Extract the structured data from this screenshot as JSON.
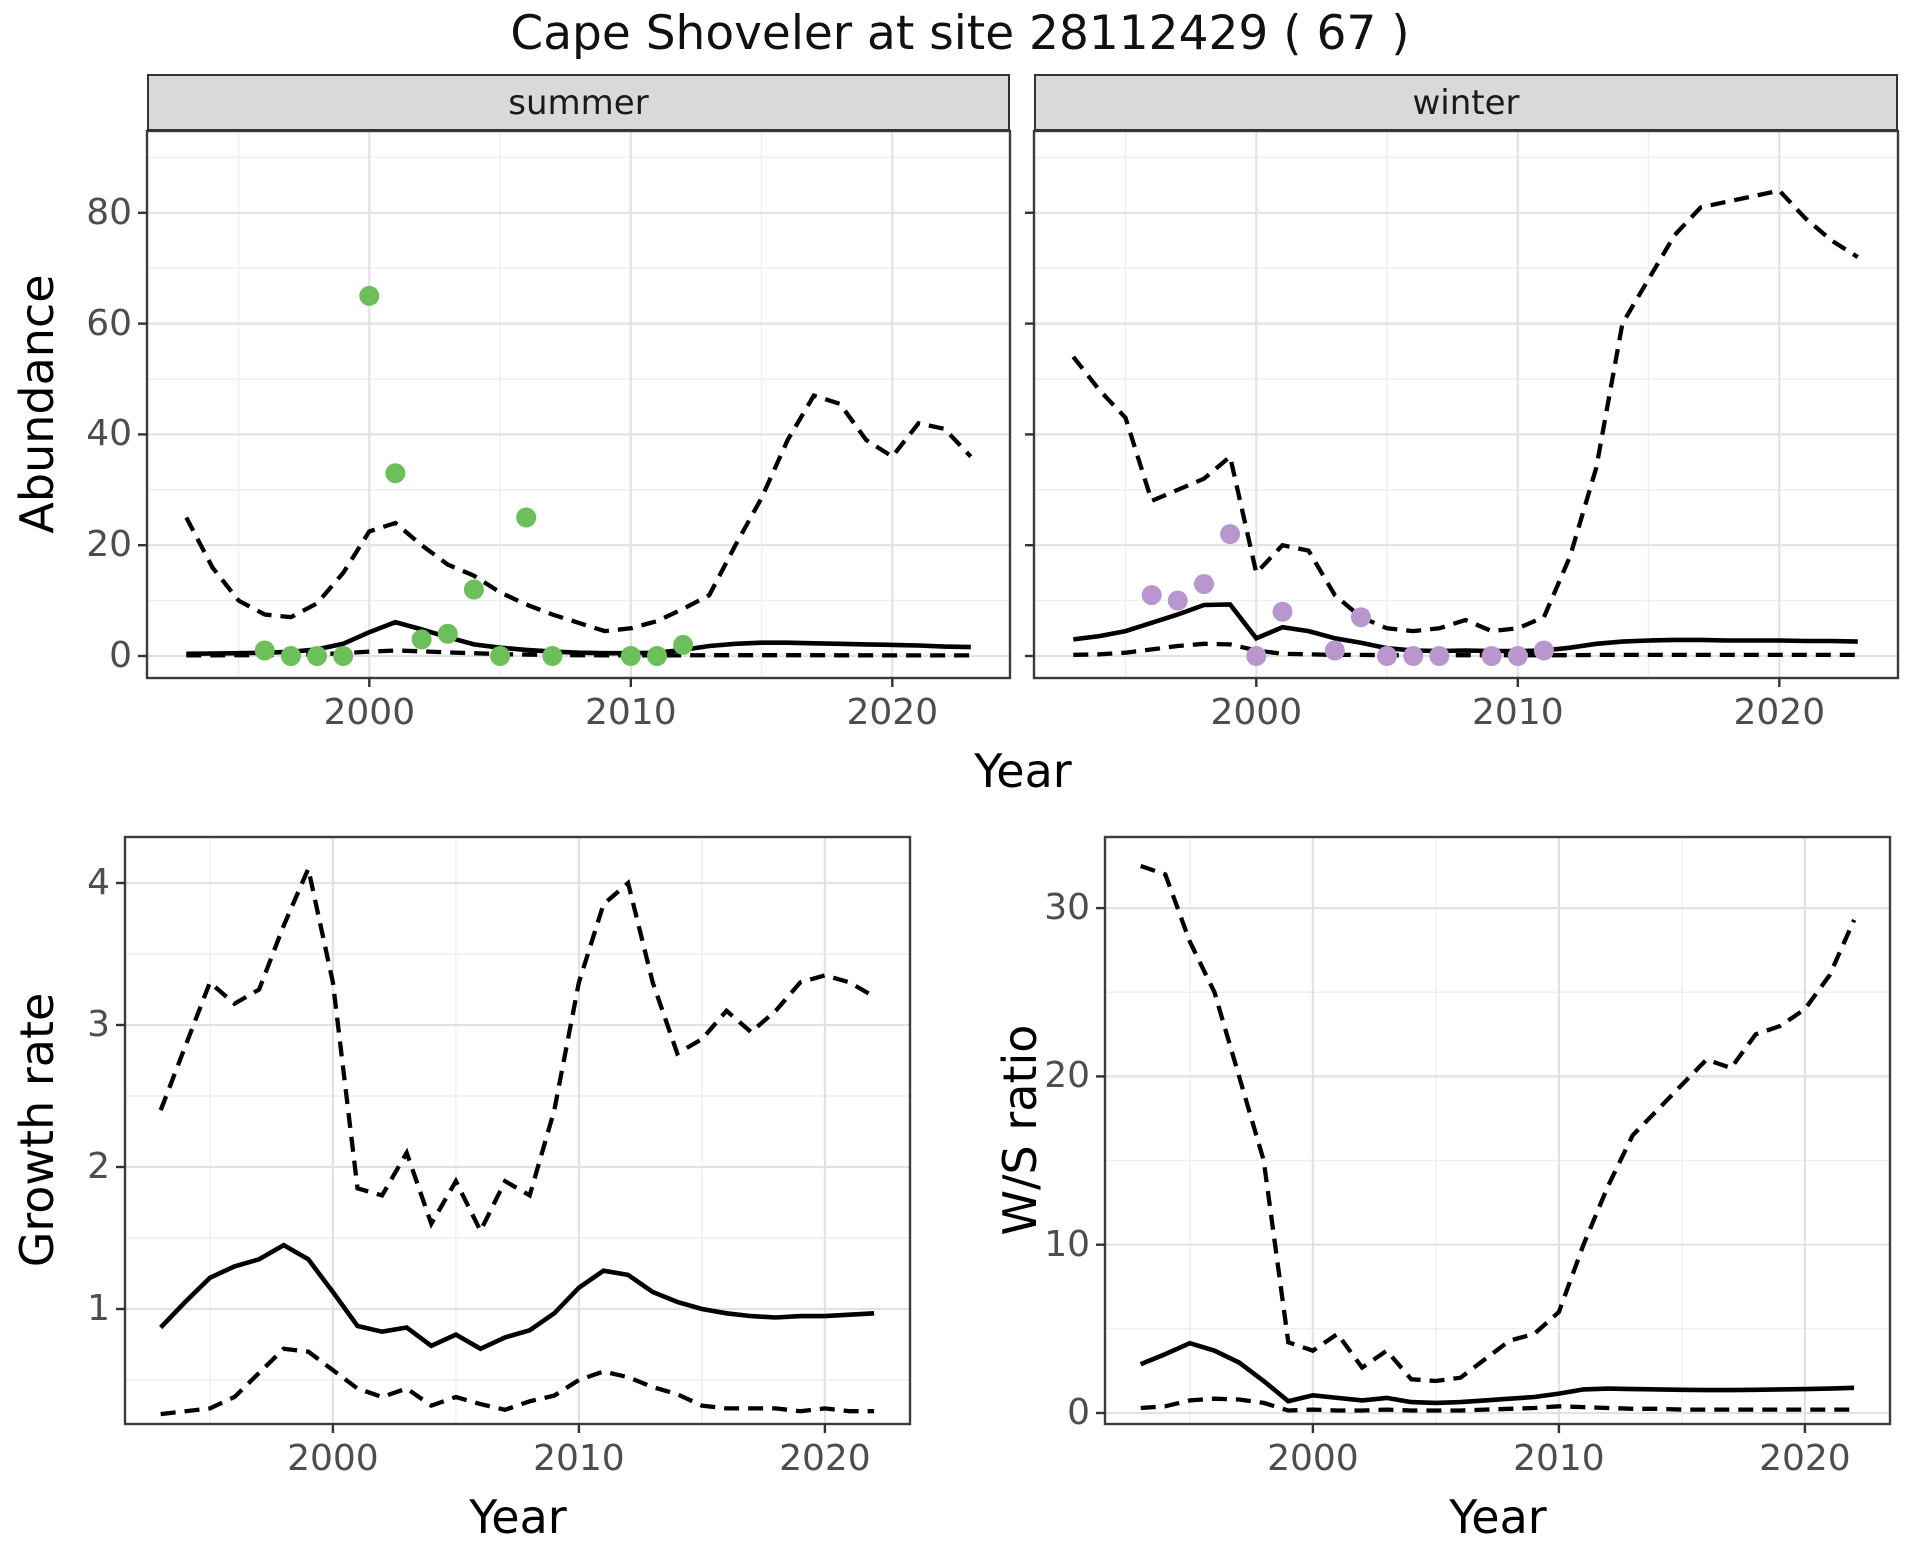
{
  "title": "Cape Shoveler at site 28112429 ( 67 )",
  "colors": {
    "summer_point": "#6cbf5a",
    "winter_point": "#b996cd",
    "line": "#000000",
    "grid_major": "#e2e2e2",
    "grid_minor": "#efefef",
    "strip_bg": "#d9d9d9",
    "panel_border": "#3c3c3c",
    "tick_mark": "#333333",
    "tick_label": "#4d4d4d"
  },
  "chart_data": [
    {
      "id": "abundance_summer",
      "type": "line",
      "facet_label": "summer",
      "xlabel": "Year",
      "ylabel": "Abundance",
      "x_ticks": [
        2000,
        2010,
        2020
      ],
      "y_ticks": [
        0,
        20,
        40,
        60,
        80
      ],
      "xlim": [
        1991.5,
        2024.5
      ],
      "ylim": [
        -4,
        94.8
      ],
      "grid": true,
      "legend_position": "none",
      "years": [
        1993,
        1994,
        1995,
        1996,
        1997,
        1998,
        1999,
        2000,
        2001,
        2002,
        2003,
        2004,
        2005,
        2006,
        2007,
        2008,
        2009,
        2010,
        2011,
        2012,
        2013,
        2014,
        2015,
        2016,
        2017,
        2018,
        2019,
        2020,
        2021,
        2022,
        2023
      ],
      "series": [
        {
          "name": "upper_ci",
          "style": "dashed",
          "values": [
            25,
            16,
            10,
            7.5,
            7,
            9.5,
            15,
            22.5,
            24,
            20,
            16.5,
            14.5,
            11.5,
            9.3,
            7.5,
            6,
            4.5,
            5,
            6.3,
            8.5,
            11,
            20,
            28.5,
            39,
            47,
            45.5,
            39,
            36,
            42,
            41,
            36
          ]
        },
        {
          "name": "mean",
          "style": "solid",
          "values": [
            0.4,
            0.45,
            0.5,
            0.6,
            0.75,
            1.2,
            2.2,
            4.3,
            6.1,
            4.8,
            3.4,
            2.1,
            1.5,
            1.1,
            0.8,
            0.6,
            0.5,
            0.5,
            0.6,
            1.1,
            1.8,
            2.2,
            2.4,
            2.4,
            2.3,
            2.2,
            2.1,
            2.0,
            1.9,
            1.7,
            1.6
          ]
        },
        {
          "name": "lower_ci",
          "style": "dashed",
          "values": [
            0.12,
            0.12,
            0.15,
            0.15,
            0.2,
            0.3,
            0.5,
            0.8,
            1.0,
            0.85,
            0.65,
            0.5,
            0.35,
            0.25,
            0.2,
            0.15,
            0.12,
            0.1,
            0.1,
            0.12,
            0.15,
            0.15,
            0.15,
            0.15,
            0.15,
            0.12,
            0.12,
            0.1,
            0.1,
            0.1,
            0.1
          ]
        }
      ],
      "points": {
        "name": "observed_counts",
        "color_key": "summer_point",
        "x": [
          1996,
          1997,
          1998,
          1999,
          2000,
          2001,
          2002,
          2003,
          2004,
          2005,
          2006,
          2007,
          2010,
          2011,
          2012
        ],
        "y": [
          1,
          0,
          0,
          0,
          65,
          33,
          3,
          4,
          12,
          0,
          25,
          0,
          0,
          0,
          2
        ]
      }
    },
    {
      "id": "abundance_winter",
      "type": "line",
      "facet_label": "winter",
      "xlabel": "Year",
      "ylabel": "Abundance",
      "x_ticks": [
        2000,
        2010,
        2020
      ],
      "y_ticks": [
        0,
        20,
        40,
        60,
        80
      ],
      "xlim": [
        1991.5,
        2024.5
      ],
      "ylim": [
        -4,
        94.8
      ],
      "grid": true,
      "legend_position": "none",
      "years": [
        1993,
        1994,
        1995,
        1996,
        1997,
        1998,
        1999,
        2000,
        2001,
        2002,
        2003,
        2004,
        2005,
        2006,
        2007,
        2008,
        2009,
        2010,
        2011,
        2012,
        2013,
        2014,
        2015,
        2016,
        2017,
        2018,
        2019,
        2020,
        2021,
        2022,
        2023
      ],
      "series": [
        {
          "name": "upper_ci",
          "style": "dashed",
          "values": [
            54,
            48,
            43,
            28,
            30,
            32,
            36,
            15,
            20,
            19,
            11,
            7,
            5,
            4.5,
            5,
            6.5,
            4.5,
            5,
            7,
            18,
            34,
            60,
            68,
            76,
            81,
            82,
            83,
            84,
            79,
            75,
            72
          ]
        },
        {
          "name": "mean",
          "style": "solid",
          "values": [
            3,
            3.6,
            4.5,
            6,
            7.5,
            9.2,
            9.3,
            3.2,
            5.2,
            4.5,
            3.2,
            2.4,
            1.4,
            1.0,
            0.9,
            1.0,
            0.9,
            0.9,
            1.0,
            1.5,
            2.2,
            2.6,
            2.8,
            2.9,
            2.9,
            2.8,
            2.8,
            2.8,
            2.7,
            2.7,
            2.6
          ]
        },
        {
          "name": "lower_ci",
          "style": "dashed",
          "values": [
            0.2,
            0.3,
            0.6,
            1.2,
            1.8,
            2.2,
            2.1,
            1.0,
            0.4,
            0.3,
            0.2,
            0.2,
            0.15,
            0.15,
            0.15,
            0.15,
            0.15,
            0.15,
            0.15,
            0.15,
            0.2,
            0.2,
            0.2,
            0.2,
            0.2,
            0.2,
            0.2,
            0.2,
            0.2,
            0.2,
            0.2
          ]
        }
      ],
      "points": {
        "name": "observed_counts",
        "color_key": "winter_point",
        "x": [
          1996,
          1997,
          1998,
          1999,
          2000,
          2001,
          2003,
          2004,
          2005,
          2006,
          2007,
          2009,
          2010,
          2011
        ],
        "y": [
          11,
          10,
          13,
          22,
          0,
          8,
          1,
          7,
          0,
          0,
          0,
          0,
          0,
          1
        ]
      }
    },
    {
      "id": "growth_rate",
      "type": "line",
      "facet_label": null,
      "xlabel": "Year",
      "ylabel": "Growth rate",
      "x_ticks": [
        2000,
        2010,
        2020
      ],
      "y_ticks": [
        1,
        2,
        3,
        4
      ],
      "xlim": [
        1991.55,
        2023.45
      ],
      "ylim": [
        0.19,
        4.32
      ],
      "grid": true,
      "legend_position": "none",
      "years": [
        1993,
        1994,
        1995,
        1996,
        1997,
        1998,
        1999,
        2000,
        2001,
        2002,
        2003,
        2004,
        2005,
        2006,
        2007,
        2008,
        2009,
        2010,
        2011,
        2012,
        2013,
        2014,
        2015,
        2016,
        2017,
        2018,
        2019,
        2020,
        2021,
        2022
      ],
      "series": [
        {
          "name": "upper_ci",
          "style": "dashed",
          "values": [
            2.4,
            2.85,
            3.3,
            3.15,
            3.25,
            3.7,
            4.1,
            3.3,
            1.85,
            1.8,
            2.1,
            1.6,
            1.9,
            1.55,
            1.9,
            1.8,
            2.4,
            3.3,
            3.85,
            4.0,
            3.3,
            2.8,
            2.9,
            3.1,
            2.95,
            3.1,
            3.3,
            3.35,
            3.3,
            3.2
          ]
        },
        {
          "name": "mean",
          "style": "solid",
          "values": [
            0.87,
            1.05,
            1.22,
            1.3,
            1.35,
            1.45,
            1.35,
            1.12,
            0.88,
            0.84,
            0.87,
            0.74,
            0.82,
            0.72,
            0.8,
            0.85,
            0.97,
            1.15,
            1.27,
            1.24,
            1.12,
            1.05,
            1.0,
            0.97,
            0.95,
            0.94,
            0.95,
            0.95,
            0.96,
            0.97
          ]
        },
        {
          "name": "lower_ci",
          "style": "dashed",
          "values": [
            0.26,
            0.28,
            0.3,
            0.38,
            0.55,
            0.72,
            0.7,
            0.57,
            0.44,
            0.38,
            0.44,
            0.32,
            0.38,
            0.33,
            0.29,
            0.35,
            0.39,
            0.5,
            0.56,
            0.52,
            0.45,
            0.4,
            0.32,
            0.3,
            0.3,
            0.3,
            0.28,
            0.3,
            0.28,
            0.28
          ]
        }
      ],
      "points": null
    },
    {
      "id": "ws_ratio",
      "type": "line",
      "facet_label": null,
      "xlabel": "Year",
      "ylabel": "W/S ratio",
      "x_ticks": [
        2000,
        2010,
        2020
      ],
      "y_ticks": [
        0,
        10,
        20,
        30
      ],
      "xlim": [
        1991.55,
        2023.45
      ],
      "ylim": [
        -0.65,
        34.2
      ],
      "grid": true,
      "legend_position": "none",
      "years": [
        1993,
        1994,
        1995,
        1996,
        1997,
        1998,
        1999,
        2000,
        2001,
        2002,
        2003,
        2004,
        2005,
        2006,
        2007,
        2008,
        2009,
        2010,
        2011,
        2012,
        2013,
        2014,
        2015,
        2016,
        2017,
        2018,
        2019,
        2020,
        2021,
        2022
      ],
      "series": [
        {
          "name": "upper_ci",
          "style": "dashed",
          "values": [
            32.5,
            32,
            28,
            25,
            20,
            15,
            4.2,
            3.7,
            4.7,
            2.7,
            3.7,
            2.0,
            1.9,
            2.1,
            3.2,
            4.3,
            4.7,
            6,
            10,
            13.5,
            16.5,
            18,
            19.5,
            21,
            20.5,
            22.5,
            23,
            24,
            26,
            29.3
          ]
        },
        {
          "name": "mean",
          "style": "solid",
          "values": [
            2.9,
            3.5,
            4.15,
            3.7,
            3.0,
            1.9,
            0.7,
            1.05,
            0.9,
            0.75,
            0.9,
            0.65,
            0.6,
            0.65,
            0.75,
            0.85,
            0.95,
            1.15,
            1.4,
            1.45,
            1.42,
            1.4,
            1.38,
            1.36,
            1.36,
            1.38,
            1.4,
            1.42,
            1.45,
            1.5
          ]
        },
        {
          "name": "lower_ci",
          "style": "dashed",
          "values": [
            0.3,
            0.4,
            0.75,
            0.85,
            0.8,
            0.6,
            0.15,
            0.2,
            0.15,
            0.15,
            0.2,
            0.15,
            0.15,
            0.15,
            0.2,
            0.25,
            0.3,
            0.4,
            0.35,
            0.3,
            0.25,
            0.25,
            0.2,
            0.2,
            0.2,
            0.2,
            0.2,
            0.2,
            0.2,
            0.2
          ]
        }
      ],
      "points": null
    }
  ]
}
